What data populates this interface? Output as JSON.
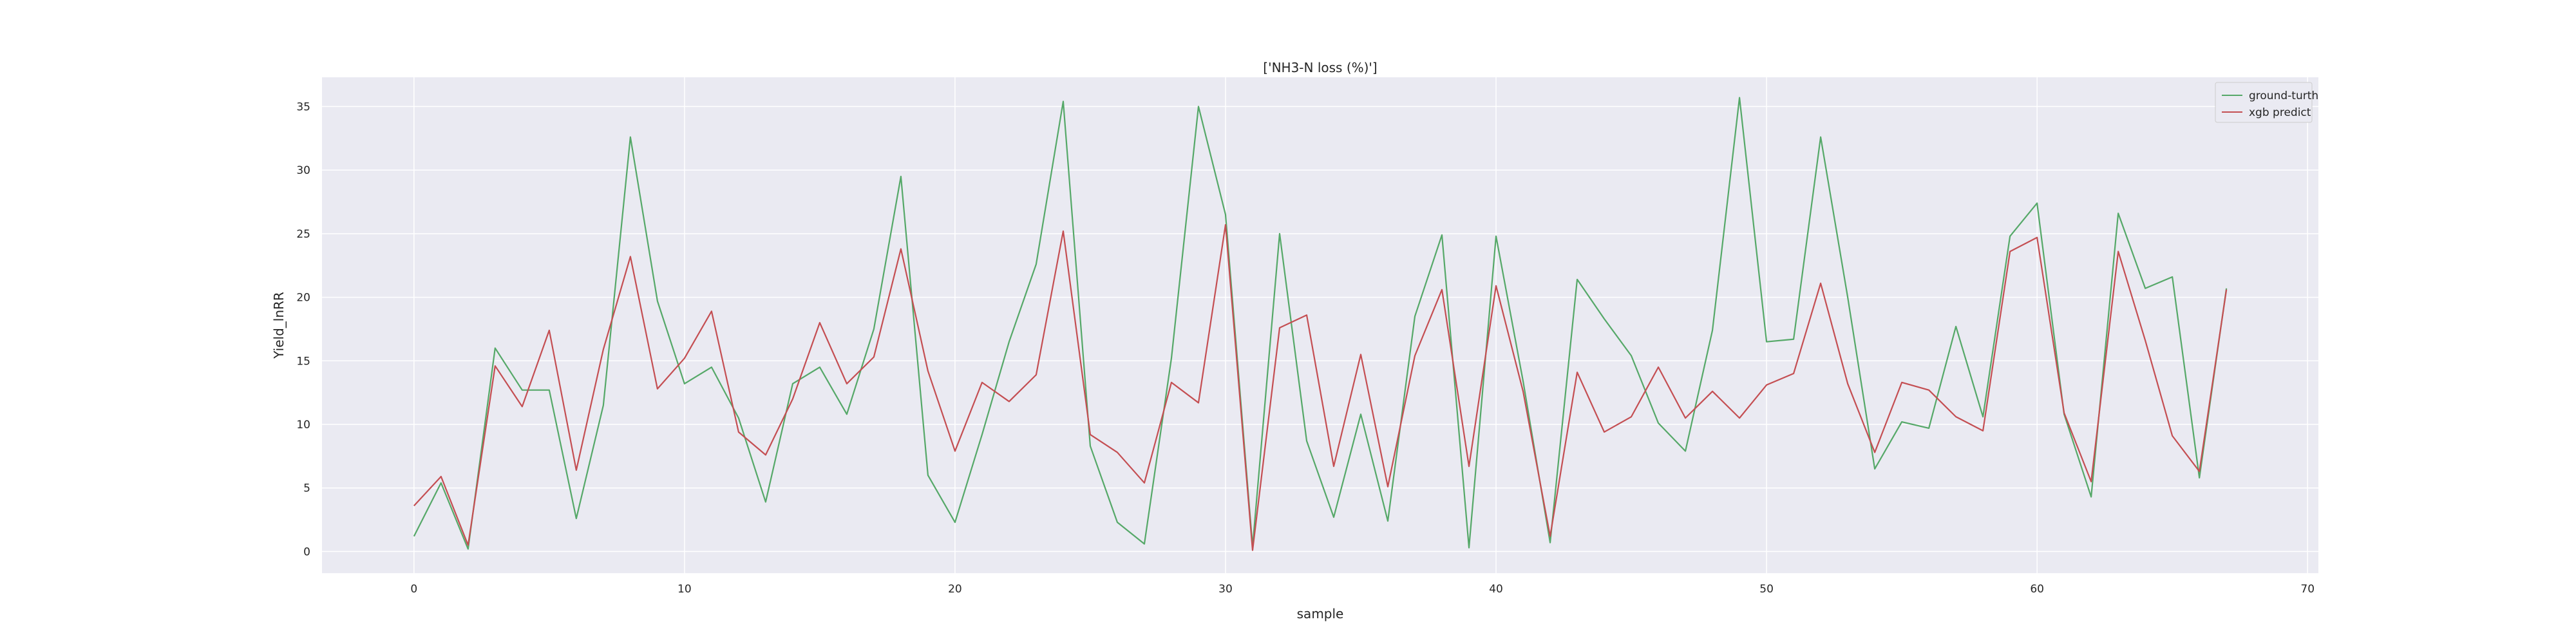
{
  "chart_data": {
    "type": "line",
    "title": "['NH3-N loss (%)']",
    "xlabel": "sample",
    "ylabel": "Yield_lnRR",
    "xlim": [
      -3.4,
      70.4
    ],
    "ylim": [
      -1.7,
      37.3
    ],
    "xticks": [
      0,
      10,
      20,
      30,
      40,
      50,
      60,
      70
    ],
    "yticks": [
      0,
      5,
      10,
      15,
      20,
      25,
      30,
      35
    ],
    "grid": true,
    "legend_position": "top-right",
    "x": [
      0,
      1,
      2,
      3,
      4,
      5,
      6,
      7,
      8,
      9,
      10,
      11,
      12,
      13,
      14,
      15,
      16,
      17,
      18,
      19,
      20,
      21,
      22,
      23,
      24,
      25,
      26,
      27,
      28,
      29,
      30,
      31,
      32,
      33,
      34,
      35,
      36,
      37,
      38,
      39,
      40,
      41,
      42,
      43,
      44,
      45,
      46,
      47,
      48,
      49,
      50,
      51,
      52,
      53,
      54,
      55,
      56,
      57,
      58,
      59,
      60,
      61,
      62,
      63,
      64,
      65,
      66,
      67
    ],
    "series": [
      {
        "name": "ground-turth",
        "color": "#55a868",
        "values": [
          1.2,
          5.4,
          0.2,
          16.0,
          12.7,
          12.7,
          2.6,
          11.5,
          32.6,
          19.7,
          13.2,
          14.5,
          10.5,
          3.9,
          13.2,
          14.5,
          10.8,
          17.5,
          29.5,
          6.0,
          2.3,
          9.2,
          16.5,
          22.6,
          35.4,
          8.3,
          2.3,
          0.6,
          15.2,
          35.0,
          26.5,
          0.4,
          25.0,
          8.7,
          2.7,
          10.8,
          2.4,
          18.5,
          24.9,
          0.3,
          24.8,
          13.4,
          0.7,
          21.4,
          18.3,
          15.4,
          10.1,
          7.9,
          17.4,
          35.7,
          16.5,
          16.7,
          32.6,
          20.0,
          6.5,
          10.2,
          9.7,
          17.7,
          10.6,
          24.8,
          27.4,
          10.8,
          4.3,
          26.6,
          20.7,
          21.6,
          5.8,
          20.7
        ]
      },
      {
        "name": "xgb predict",
        "color": "#c44e52",
        "values": [
          3.6,
          5.9,
          0.5,
          14.6,
          11.4,
          17.4,
          6.4,
          15.9,
          23.2,
          12.8,
          15.2,
          18.9,
          9.4,
          7.6,
          12.0,
          18.0,
          13.2,
          15.3,
          23.8,
          14.2,
          7.9,
          13.3,
          11.8,
          13.9,
          25.2,
          9.2,
          7.8,
          5.4,
          13.3,
          11.7,
          25.7,
          0.1,
          17.6,
          18.6,
          6.7,
          15.5,
          5.1,
          15.4,
          20.6,
          6.7,
          20.9,
          12.6,
          1.2,
          14.1,
          9.4,
          10.6,
          14.5,
          10.5,
          12.6,
          10.5,
          13.1,
          14.0,
          21.1,
          13.2,
          7.8,
          13.3,
          12.7,
          10.6,
          9.5,
          23.6,
          24.7,
          10.9,
          5.5,
          23.6,
          16.6,
          9.1,
          6.3,
          20.6
        ]
      }
    ]
  }
}
